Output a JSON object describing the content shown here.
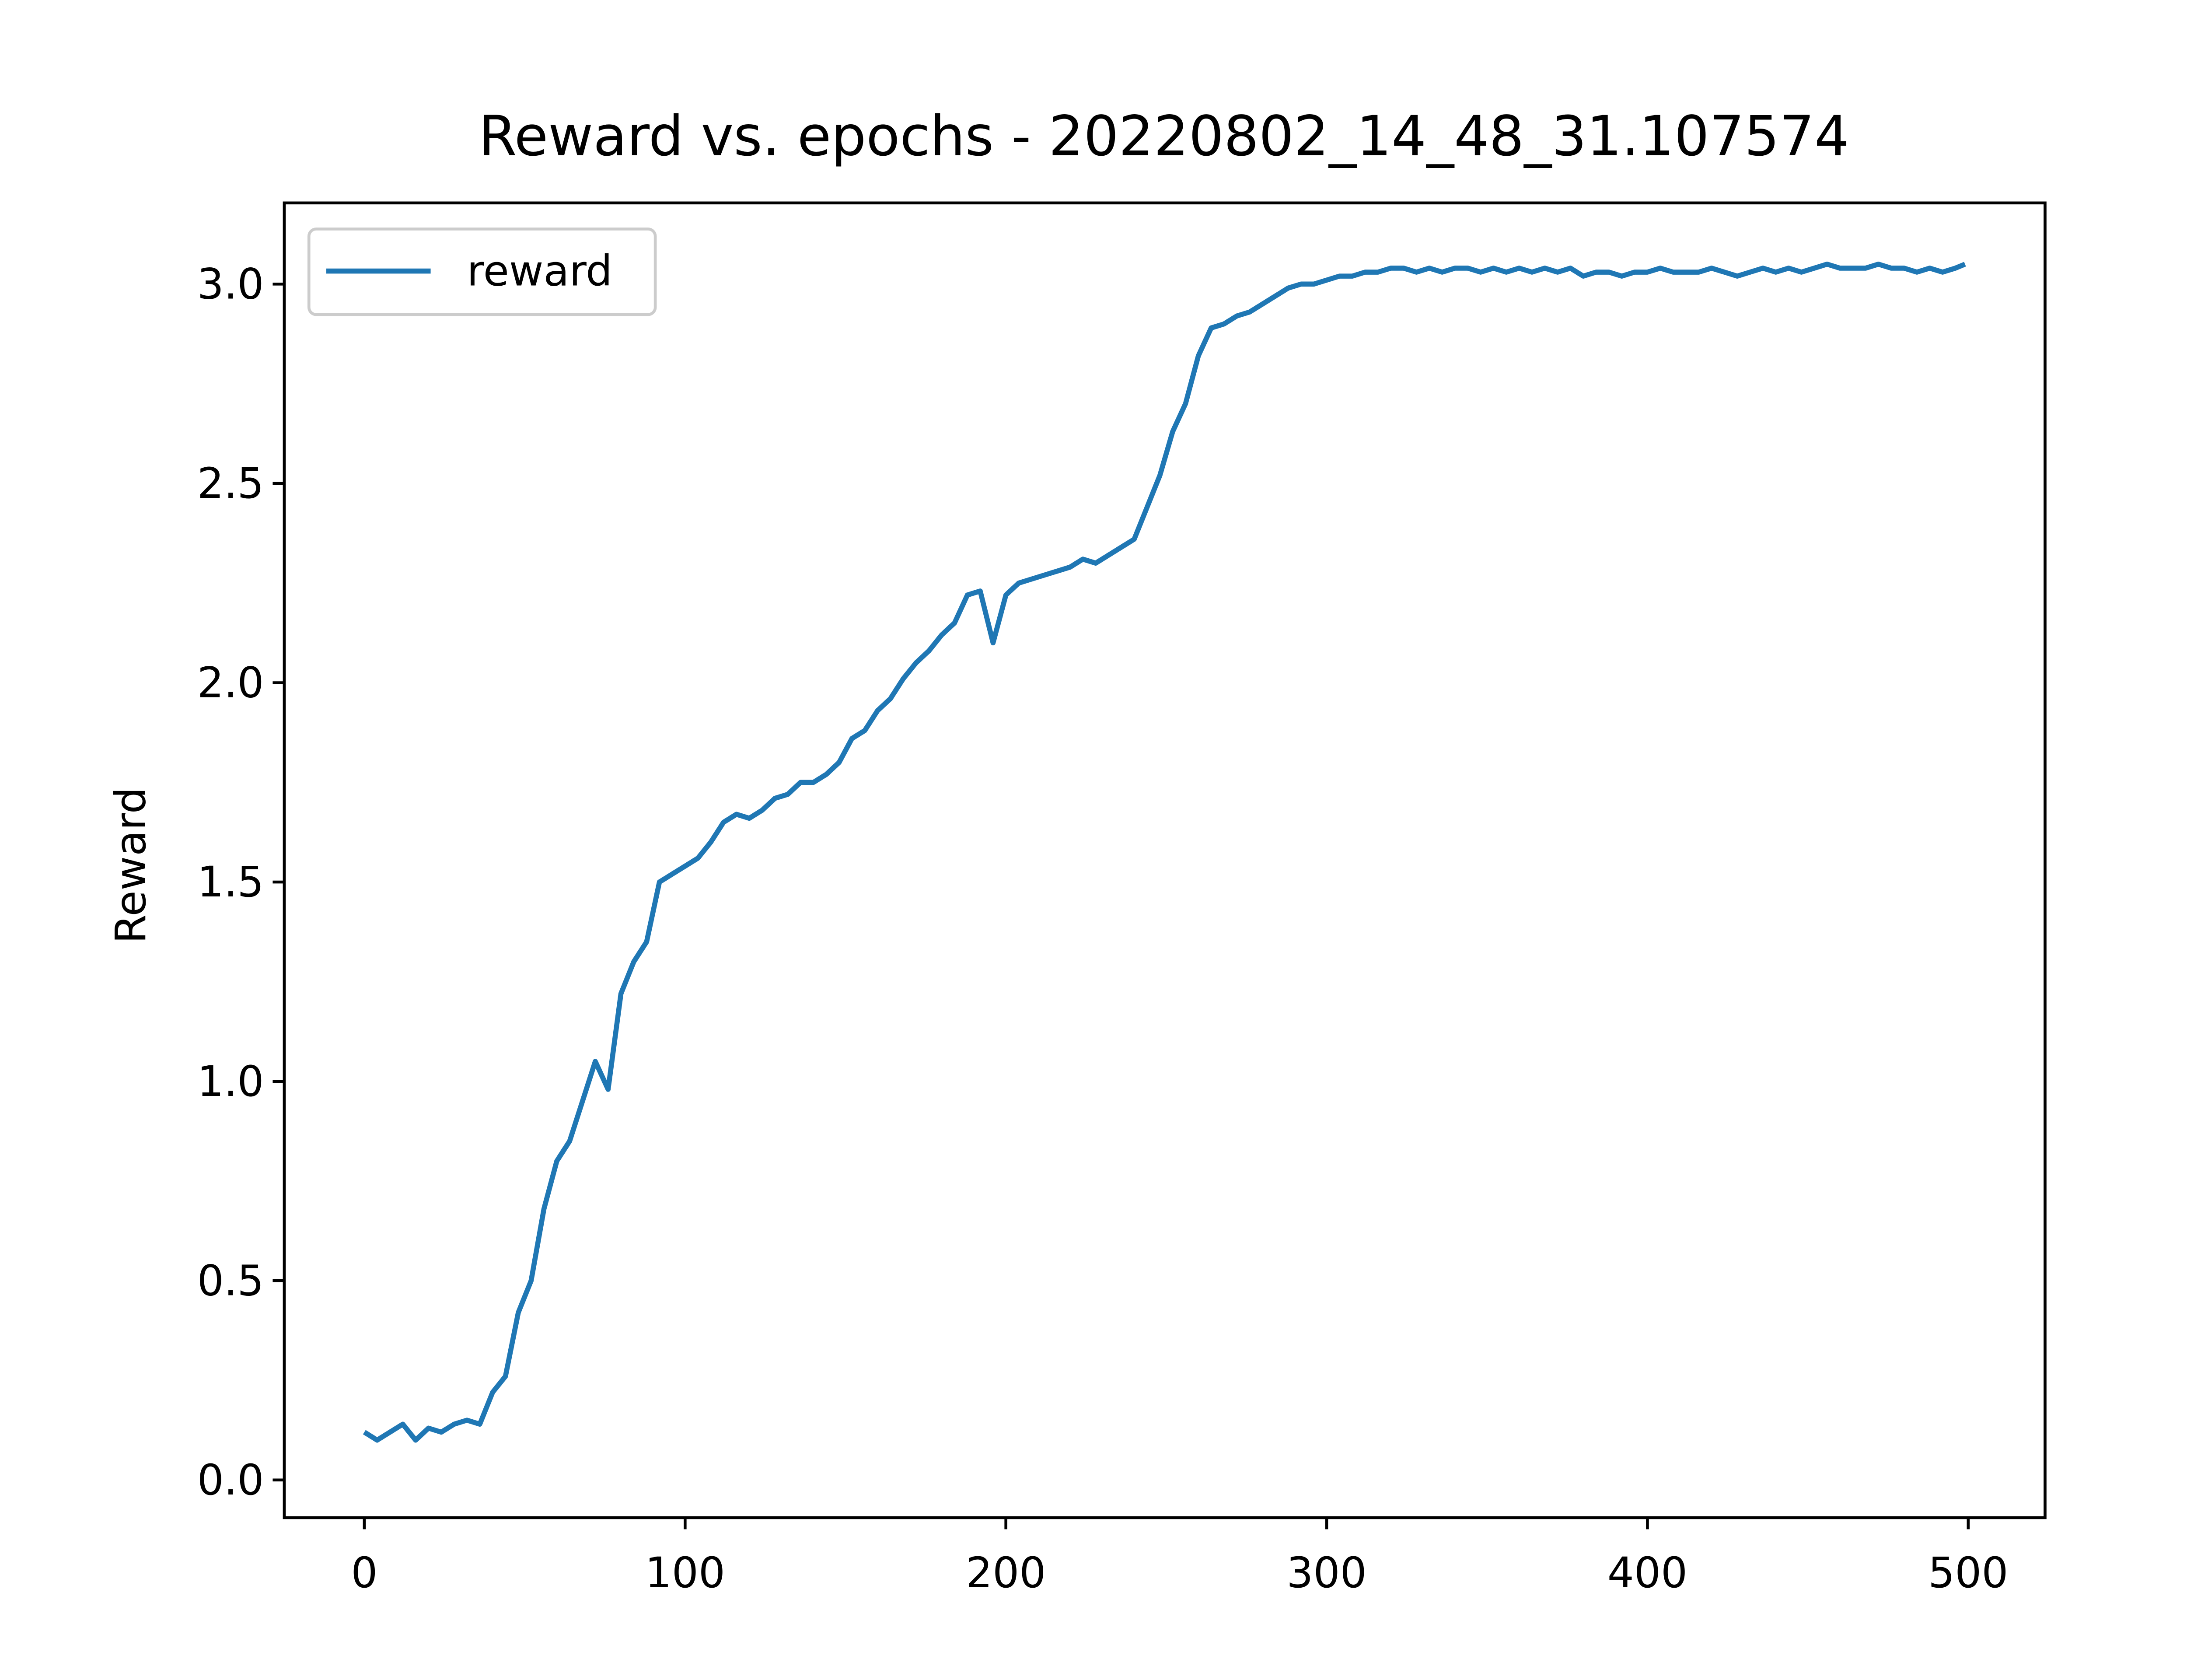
{
  "chart_data": {
    "type": "line",
    "title": "Reward vs. epochs - 20220802_14_48_31.107574",
    "ylabel": "Reward",
    "x": [
      0,
      4,
      8,
      12,
      16,
      20,
      24,
      28,
      32,
      36,
      40,
      44,
      48,
      52,
      56,
      60,
      64,
      68,
      72,
      76,
      80,
      84,
      88,
      92,
      96,
      100,
      104,
      108,
      112,
      116,
      120,
      124,
      128,
      132,
      136,
      140,
      144,
      148,
      152,
      156,
      160,
      164,
      168,
      172,
      176,
      180,
      184,
      188,
      192,
      196,
      200,
      204,
      208,
      212,
      216,
      220,
      224,
      228,
      232,
      236,
      240,
      244,
      248,
      252,
      256,
      260,
      264,
      268,
      272,
      276,
      280,
      284,
      288,
      292,
      296,
      300,
      304,
      308,
      312,
      316,
      320,
      324,
      328,
      332,
      336,
      340,
      344,
      348,
      352,
      356,
      360,
      364,
      368,
      372,
      376,
      380,
      384,
      388,
      392,
      396,
      400,
      404,
      408,
      412,
      416,
      420,
      424,
      428,
      432,
      436,
      440,
      444,
      448,
      452,
      456,
      460,
      464,
      468,
      472,
      476,
      480,
      484,
      488,
      492,
      496,
      499
    ],
    "series": [
      {
        "name": "reward",
        "color": "#1f77b4",
        "values": [
          0.12,
          0.1,
          0.12,
          0.14,
          0.1,
          0.13,
          0.12,
          0.14,
          0.15,
          0.14,
          0.22,
          0.26,
          0.42,
          0.5,
          0.68,
          0.8,
          0.85,
          0.95,
          1.05,
          0.98,
          1.22,
          1.3,
          1.35,
          1.5,
          1.52,
          1.54,
          1.56,
          1.6,
          1.65,
          1.67,
          1.66,
          1.68,
          1.71,
          1.72,
          1.75,
          1.75,
          1.77,
          1.8,
          1.86,
          1.88,
          1.93,
          1.96,
          2.01,
          2.05,
          2.08,
          2.12,
          2.15,
          2.22,
          2.23,
          2.1,
          2.22,
          2.25,
          2.26,
          2.27,
          2.28,
          2.29,
          2.31,
          2.3,
          2.32,
          2.34,
          2.36,
          2.44,
          2.52,
          2.63,
          2.7,
          2.82,
          2.89,
          2.9,
          2.92,
          2.93,
          2.95,
          2.97,
          2.99,
          3.0,
          3.0,
          3.01,
          3.02,
          3.02,
          3.03,
          3.03,
          3.04,
          3.04,
          3.03,
          3.04,
          3.03,
          3.04,
          3.04,
          3.03,
          3.04,
          3.03,
          3.04,
          3.03,
          3.04,
          3.03,
          3.04,
          3.02,
          3.03,
          3.03,
          3.02,
          3.03,
          3.03,
          3.04,
          3.03,
          3.03,
          3.03,
          3.04,
          3.03,
          3.02,
          3.03,
          3.04,
          3.03,
          3.04,
          3.03,
          3.04,
          3.05,
          3.04,
          3.04,
          3.04,
          3.05,
          3.04,
          3.04,
          3.03,
          3.04,
          3.03,
          3.04,
          3.05
        ]
      }
    ],
    "xlim": [
      -24.95,
      523.95
    ],
    "ylim": [
      -0.0945,
      3.2036
    ],
    "xticks": [
      0,
      100,
      200,
      300,
      400,
      500
    ],
    "yticks": [
      {
        "value": 0,
        "label": "0.0"
      },
      0.5,
      {
        "value": 1,
        "label": "1.0"
      },
      1.5,
      {
        "value": 2,
        "label": "2.0"
      },
      2.5,
      {
        "value": 3,
        "label": "3.0"
      }
    ],
    "legend": "upper left"
  }
}
